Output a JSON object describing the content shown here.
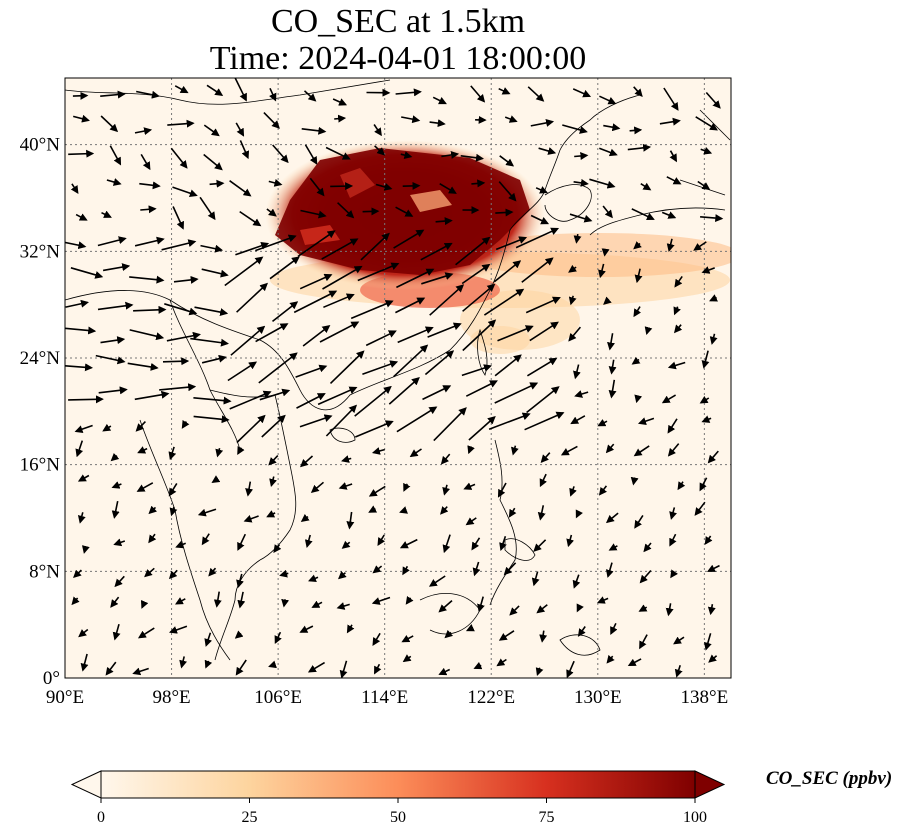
{
  "title": "CO_SEC at 1.5km",
  "subtitle": "Time: 2024-04-01 18:00:00",
  "map": {
    "lon_range": [
      90,
      140
    ],
    "lat_range": [
      0,
      45
    ],
    "lon_ticks": [
      {
        "value": 90,
        "label": "90°E"
      },
      {
        "value": 98,
        "label": "98°E"
      },
      {
        "value": 106,
        "label": "106°E"
      },
      {
        "value": 114,
        "label": "114°E"
      },
      {
        "value": 122,
        "label": "122°E"
      },
      {
        "value": 130,
        "label": "130°E"
      },
      {
        "value": 138,
        "label": "138°E"
      }
    ],
    "lat_ticks": [
      {
        "value": 0,
        "label": "0°"
      },
      {
        "value": 8,
        "label": "8°N"
      },
      {
        "value": 16,
        "label": "16°N"
      },
      {
        "value": 24,
        "label": "24°N"
      },
      {
        "value": 32,
        "label": "32°N"
      },
      {
        "value": 40,
        "label": "40°N"
      }
    ],
    "gridlines": true,
    "wind_vectors": true
  },
  "colorbar": {
    "label": "CO_SEC (ppbv)",
    "min": 0,
    "max": 100,
    "ticks": [
      0,
      25,
      50,
      75,
      100
    ],
    "colormap": "OrRd",
    "extend": "both",
    "colors": [
      "#fff7ec",
      "#fdd49e",
      "#fc8d59",
      "#d7301f",
      "#7f0000"
    ]
  }
}
